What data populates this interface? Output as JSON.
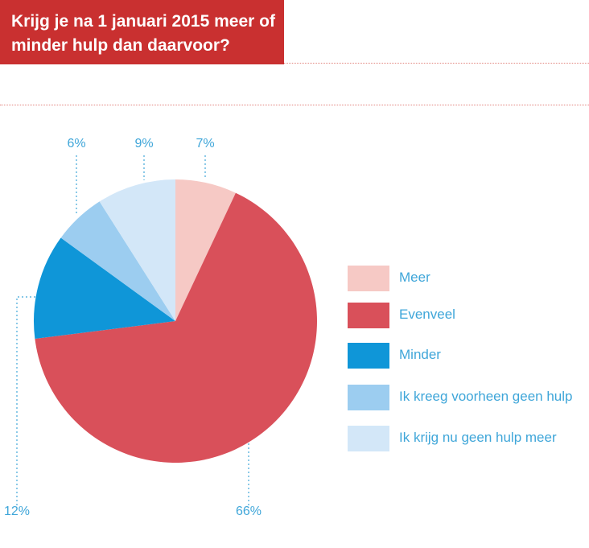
{
  "title": {
    "line1": "Krijg je na 1 januari 2015 meer of",
    "line2": "minder hulp dan daarvoor?"
  },
  "colors": {
    "title_bg": "#c93030",
    "label_text": "#3fa6d9",
    "dotted_line": "#e2837d"
  },
  "chart_data": {
    "type": "pie",
    "start": "top",
    "direction": "clockwise",
    "slices": [
      {
        "label": "Meer",
        "value": 7,
        "display": "7%",
        "color": "#f6c9c5"
      },
      {
        "label": "Evenveel",
        "value": 66,
        "display": "66%",
        "color": "#d9505a"
      },
      {
        "label": "Minder",
        "value": 12,
        "display": "12%",
        "color": "#0f96d8"
      },
      {
        "label": "Ik kreeg voorheen geen hulp",
        "value": 6,
        "display": "6%",
        "color": "#9ccdf0"
      },
      {
        "label": "Ik krijg nu geen hulp meer",
        "value": 9,
        "display": "9%",
        "color": "#d3e7f8"
      }
    ],
    "legend_position": "right"
  }
}
